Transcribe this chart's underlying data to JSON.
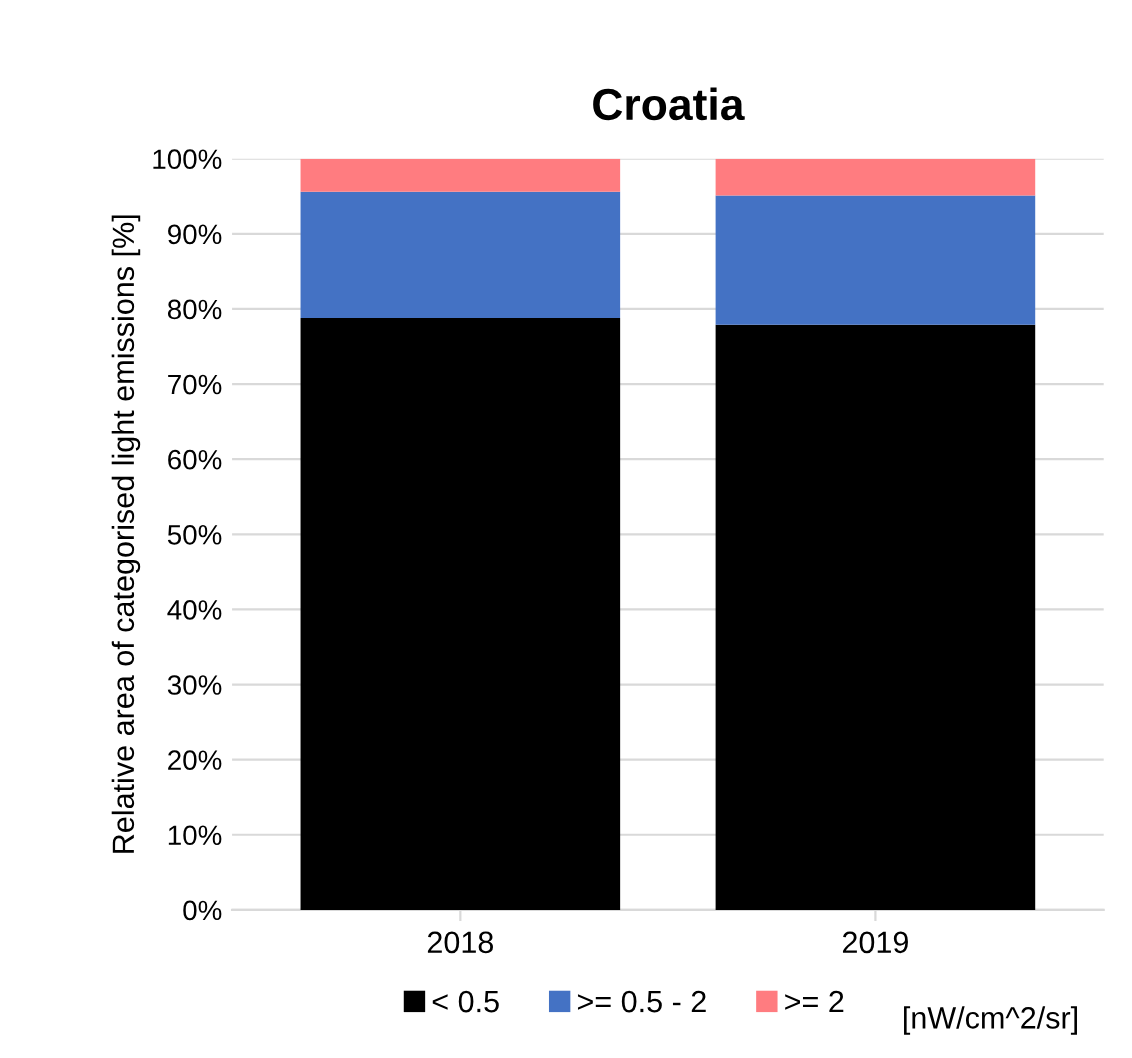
{
  "chart_data": {
    "type": "bar",
    "title": "Croatia",
    "ylabel": "Relative area of categorised light emissions [%]",
    "categories": [
      "2018",
      "2019"
    ],
    "stacked": true,
    "series": [
      {
        "name": "< 0.5",
        "color": "#000000",
        "values": [
          78.8,
          77.9
        ]
      },
      {
        "name": ">= 0.5 - 2",
        "color": "#4472c4",
        "values": [
          16.8,
          17.2
        ]
      },
      {
        "name": ">= 2",
        "color": "#ff7c80",
        "values": [
          4.4,
          4.9
        ]
      }
    ],
    "ylim": [
      0,
      100
    ],
    "yticks": [
      {
        "value": 0,
        "label": "0%"
      },
      {
        "value": 10,
        "label": "10%"
      },
      {
        "value": 20,
        "label": "20%"
      },
      {
        "value": 30,
        "label": "30%"
      },
      {
        "value": 40,
        "label": "40%"
      },
      {
        "value": 50,
        "label": "50%"
      },
      {
        "value": 60,
        "label": "60%"
      },
      {
        "value": 70,
        "label": "70%"
      },
      {
        "value": 80,
        "label": "80%"
      },
      {
        "value": 90,
        "label": "90%"
      },
      {
        "value": 100,
        "label": "100%"
      }
    ],
    "grid": "y",
    "legend": "bottom",
    "annotations": [
      "[nW/cm^2/sr]"
    ]
  }
}
